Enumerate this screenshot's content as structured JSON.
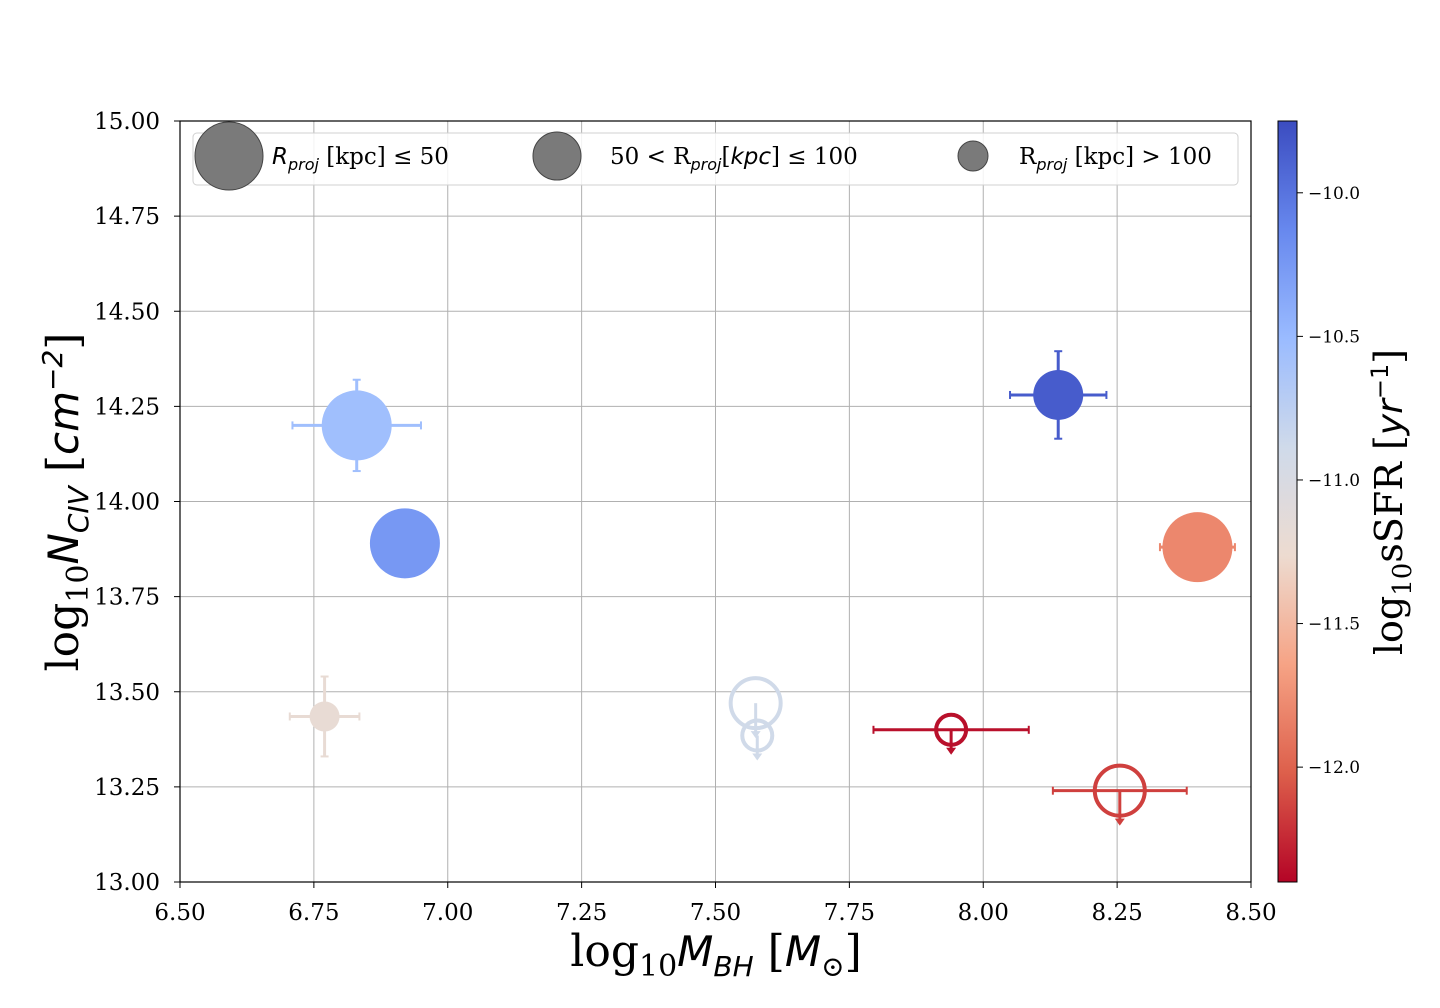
{
  "chart_data": {
    "type": "scatter",
    "title": "",
    "xlabel": {
      "prefix": "log",
      "sub1": "10",
      "var": "M",
      "sub2": "BH",
      "unit_open": " [",
      "unit_var": "M",
      "unit_sub": "⊙",
      "unit_close": "]"
    },
    "ylabel": {
      "prefix": "log",
      "sub1": "10",
      "var": "N",
      "sub2": "CIV",
      "unit_open": " [",
      "unit_var": "cm",
      "unit_sup": "−2",
      "unit_close": "]"
    },
    "colorbar_label": {
      "prefix": "log",
      "sub1": "10",
      "text": "sSFR [",
      "var": "yr",
      "sup": "−1",
      "close": "]"
    },
    "xlim": [
      6.5,
      8.5
    ],
    "ylim": [
      13.0,
      15.0
    ],
    "xticks": [
      "6.50",
      "6.75",
      "7.00",
      "7.25",
      "7.50",
      "7.75",
      "8.00",
      "8.25",
      "8.50"
    ],
    "yticks": [
      "13.00",
      "13.25",
      "13.50",
      "13.75",
      "14.00",
      "14.25",
      "14.50",
      "14.75",
      "15.00"
    ],
    "colorbar": {
      "cmap": "coolwarm",
      "range": [
        -12.4,
        -9.75
      ],
      "ticks": [
        "−10.0",
        "−10.5",
        "−11.0",
        "−11.5",
        "−12.0"
      ],
      "tick_values": [
        -10.0,
        -10.5,
        -11.0,
        -11.5,
        -12.0
      ],
      "colors": [
        "#b40426",
        "#dd5f4b",
        "#f6a385",
        "#eddbd0",
        "#cfdaea",
        "#9abbff",
        "#6788ee",
        "#3b4cc0"
      ]
    },
    "grid": true,
    "legend": {
      "placement": "top",
      "marker_color": "#7a7a7a",
      "entries": [
        {
          "size": "large",
          "label_var": "R",
          "label_sub": "proj",
          "label_text": " [kpc]  ≤  50"
        },
        {
          "size": "medium",
          "label_pre": "50 < R",
          "label_sub": "proj",
          "label_text": "[",
          "label_var2": "kpc",
          "label_text2": "]  ≤  100"
        },
        {
          "size": "small",
          "label_pre": "R",
          "label_sub": "proj",
          "label_text": " [kpc] > 100"
        }
      ]
    },
    "points": [
      {
        "x": 6.83,
        "y": 14.2,
        "xerr": 0.12,
        "yerr": 0.12,
        "ssfr": -10.55,
        "size": "large",
        "filled": true,
        "upper_limit": false
      },
      {
        "x": 6.92,
        "y": 13.89,
        "xerr": 0,
        "yerr": 0,
        "ssfr": -10.25,
        "size": "large",
        "filled": true,
        "upper_limit": false
      },
      {
        "x": 6.77,
        "y": 13.435,
        "xerr": 0.065,
        "yerr": 0.105,
        "ssfr": -11.2,
        "size": "small",
        "filled": true,
        "upper_limit": false
      },
      {
        "x": 7.575,
        "y": 13.47,
        "xerr": 0,
        "yerr": 0,
        "ssfr": -10.9,
        "size": "medium",
        "filled": false,
        "upper_limit": true
      },
      {
        "x": 7.578,
        "y": 13.385,
        "xerr": 0,
        "yerr": 0,
        "ssfr": -10.9,
        "size": "small",
        "filled": false,
        "upper_limit": true
      },
      {
        "x": 7.94,
        "y": 13.4,
        "xerr": 0.145,
        "yerr": 0,
        "ssfr": -12.35,
        "size": "small",
        "filled": false,
        "upper_limit": true
      },
      {
        "x": 8.14,
        "y": 14.28,
        "xerr": 0.09,
        "yerr": 0.115,
        "ssfr": -9.85,
        "size": "medium",
        "filled": true,
        "upper_limit": false
      },
      {
        "x": 8.255,
        "y": 13.24,
        "xerr": 0.125,
        "yerr": 0,
        "ssfr": -12.15,
        "size": "medium",
        "filled": false,
        "upper_limit": true
      },
      {
        "x": 8.4,
        "y": 13.88,
        "xerr": 0.07,
        "yerr": 0,
        "ssfr": -11.8,
        "size": "large",
        "filled": true,
        "upper_limit": false
      }
    ]
  }
}
